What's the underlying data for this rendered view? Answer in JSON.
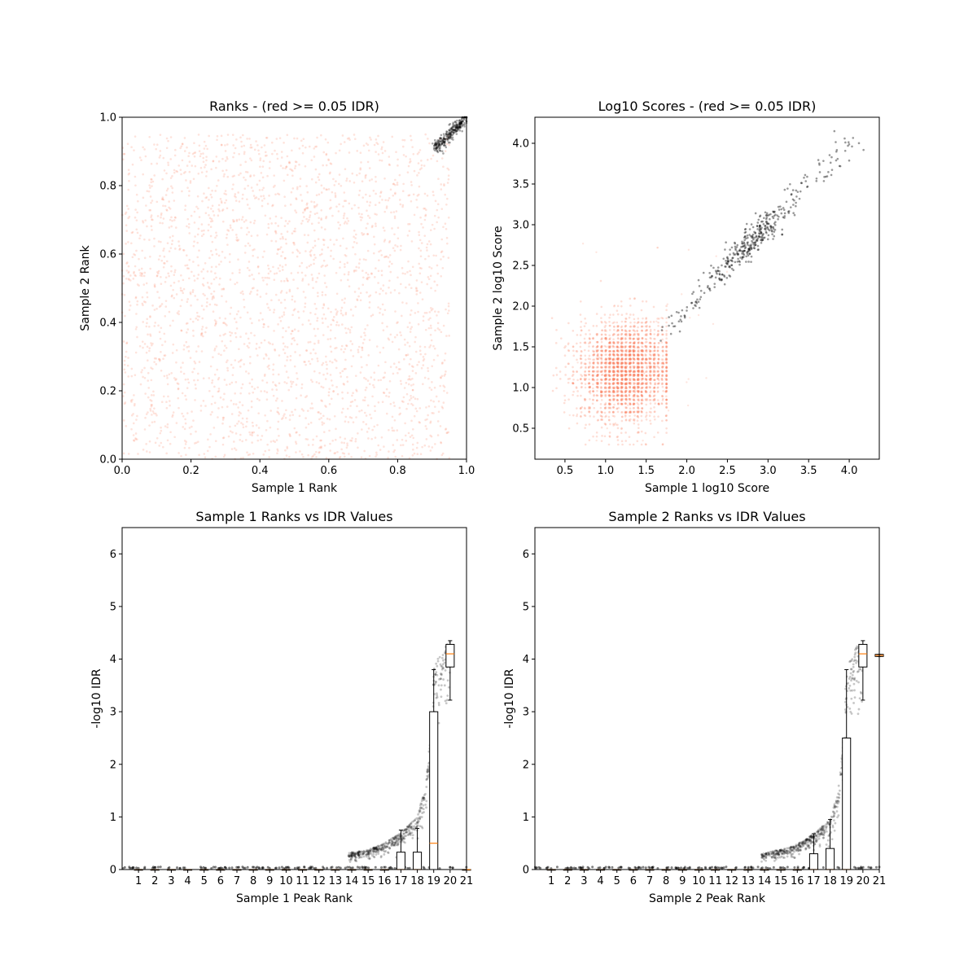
{
  "chart_data": [
    {
      "type": "scatter",
      "title": "Ranks - (red >= 0.05 IDR)",
      "xlabel": "Sample 1 Rank",
      "ylabel": "Sample 2 Rank",
      "xlim": [
        0.0,
        1.0
      ],
      "ylim": [
        0.0,
        1.0
      ],
      "xticks": [
        "0.0",
        "0.2",
        "0.4",
        "0.6",
        "0.8",
        "1.0"
      ],
      "yticks": [
        "0.0",
        "0.2",
        "0.4",
        "0.6",
        "0.8",
        "1.0"
      ],
      "grid": false,
      "colors": {
        "irreproducible": "#fa8060",
        "reproducible": "#000000"
      },
      "series": [
        {
          "point_count_estimate": 9500,
          "distribution": "uniform",
          "x_range": [
            0.0,
            0.95
          ],
          "y_range": [
            0.0,
            0.95
          ]
        },
        {
          "point_count_estimate": 450,
          "distribution": "diagonal band",
          "x_range": [
            0.9,
            1.0
          ],
          "y_range": [
            0.9,
            1.0
          ]
        }
      ]
    },
    {
      "type": "scatter",
      "title": "Log10 Scores - (red >= 0.05 IDR)",
      "xlabel": "Sample 1 log10 Score",
      "ylabel": "Sample 2 log10 Score",
      "xlim": [
        0.13,
        4.37
      ],
      "ylim": [
        0.12,
        4.32
      ],
      "xticks": [
        "0.5",
        "1.0",
        "1.5",
        "2.0",
        "2.5",
        "3.0",
        "3.5",
        "4.0"
      ],
      "yticks": [
        "0.5",
        "1.0",
        "1.5",
        "2.0",
        "2.5",
        "3.0",
        "3.5",
        "4.0"
      ],
      "grid": false,
      "colors": {
        "irreproducible": "#fa8060",
        "reproducible": "#000000"
      },
      "series": [
        {
          "point_count_estimate": 9500,
          "center": [
            1.25,
            1.2
          ],
          "x_range": [
            0.3,
            2.2
          ],
          "y_range": [
            0.3,
            2.4
          ]
        },
        {
          "point_count_estimate": 450,
          "distribution": "diagonal",
          "x_range": [
            1.7,
            4.15
          ],
          "y_range": [
            1.7,
            4.12
          ],
          "densest_at": [
            2.8,
            2.8
          ]
        }
      ]
    },
    {
      "type": "box",
      "title": "Sample 1 Ranks vs IDR Values",
      "xlabel": "Sample 1 Peak Rank",
      "ylabel": "-log10 IDR",
      "ylim": [
        0,
        6.5
      ],
      "yticks": [
        "0",
        "1",
        "2",
        "3",
        "4",
        "5",
        "6"
      ],
      "categories": [
        "1",
        "2",
        "3",
        "4",
        "5",
        "6",
        "7",
        "8",
        "9",
        "10",
        "11",
        "12",
        "13",
        "14",
        "15",
        "16",
        "17",
        "18",
        "19",
        "20",
        "21"
      ],
      "boxes": [
        {
          "q1": 0,
          "median": 0,
          "q3": 0,
          "whisker_low": 0,
          "whisker_high": 0
        },
        {
          "q1": 0,
          "median": 0,
          "q3": 0,
          "whisker_low": 0,
          "whisker_high": 0
        },
        {
          "q1": 0,
          "median": 0,
          "q3": 0,
          "whisker_low": 0,
          "whisker_high": 0
        },
        {
          "q1": 0,
          "median": 0,
          "q3": 0,
          "whisker_low": 0,
          "whisker_high": 0
        },
        {
          "q1": 0,
          "median": 0,
          "q3": 0,
          "whisker_low": 0,
          "whisker_high": 0
        },
        {
          "q1": 0,
          "median": 0,
          "q3": 0,
          "whisker_low": 0,
          "whisker_high": 0
        },
        {
          "q1": 0,
          "median": 0,
          "q3": 0,
          "whisker_low": 0,
          "whisker_high": 0
        },
        {
          "q1": 0,
          "median": 0,
          "q3": 0,
          "whisker_low": 0,
          "whisker_high": 0
        },
        {
          "q1": 0,
          "median": 0,
          "q3": 0,
          "whisker_low": 0,
          "whisker_high": 0
        },
        {
          "q1": 0,
          "median": 0,
          "q3": 0,
          "whisker_low": 0,
          "whisker_high": 0
        },
        {
          "q1": 0,
          "median": 0,
          "q3": 0,
          "whisker_low": 0,
          "whisker_high": 0
        },
        {
          "q1": 0,
          "median": 0,
          "q3": 0,
          "whisker_low": 0,
          "whisker_high": 0
        },
        {
          "q1": 0,
          "median": 0,
          "q3": 0,
          "whisker_low": 0,
          "whisker_high": 0
        },
        {
          "q1": 0,
          "median": 0,
          "q3": 0,
          "whisker_low": 0,
          "whisker_high": 0
        },
        {
          "q1": 0,
          "median": 0,
          "q3": 0,
          "whisker_low": 0,
          "whisker_high": 0
        },
        {
          "q1": 0,
          "median": 0,
          "q3": 0,
          "whisker_low": 0,
          "whisker_high": 0
        },
        {
          "q1": 0,
          "median": 0,
          "q3": 0.33,
          "whisker_low": 0,
          "whisker_high": 0.75
        },
        {
          "q1": 0,
          "median": 0,
          "q3": 0.33,
          "whisker_low": 0,
          "whisker_high": 0.78
        },
        {
          "q1": 0,
          "median": 0.5,
          "q3": 3.0,
          "whisker_low": 0,
          "whisker_high": 3.8
        },
        {
          "q1": 3.85,
          "median": 4.1,
          "q3": 4.28,
          "whisker_low": 3.22,
          "whisker_high": 4.35
        },
        {
          "q1": 0,
          "median": 0,
          "q3": 0,
          "whisker_low": 0,
          "whisker_high": 0
        }
      ],
      "scatter_trend": [
        [
          13.8,
          0.32
        ],
        [
          15,
          0.38
        ],
        [
          16,
          0.5
        ],
        [
          17,
          0.7
        ],
        [
          18,
          1.0
        ],
        [
          18.5,
          1.6
        ],
        [
          18.8,
          2.6
        ],
        [
          19,
          3.8
        ],
        [
          19.5,
          4.2
        ],
        [
          20,
          4.35
        ]
      ],
      "colors": {
        "median": "#ff7f0e",
        "points": "#000000"
      }
    },
    {
      "type": "box",
      "title": "Sample 2 Ranks vs IDR Values",
      "xlabel": "Sample 2 Peak Rank",
      "ylabel": "-log10 IDR",
      "ylim": [
        0,
        6.5
      ],
      "yticks": [
        "0",
        "1",
        "2",
        "3",
        "4",
        "5",
        "6"
      ],
      "categories": [
        "1",
        "2",
        "3",
        "4",
        "5",
        "6",
        "7",
        "8",
        "9",
        "10",
        "11",
        "12",
        "13",
        "14",
        "15",
        "16",
        "17",
        "18",
        "19",
        "20",
        "21"
      ],
      "boxes": [
        {
          "q1": 0,
          "median": 0,
          "q3": 0,
          "whisker_low": 0,
          "whisker_high": 0
        },
        {
          "q1": 0,
          "median": 0,
          "q3": 0,
          "whisker_low": 0,
          "whisker_high": 0
        },
        {
          "q1": 0,
          "median": 0,
          "q3": 0,
          "whisker_low": 0,
          "whisker_high": 0
        },
        {
          "q1": 0,
          "median": 0,
          "q3": 0,
          "whisker_low": 0,
          "whisker_high": 0
        },
        {
          "q1": 0,
          "median": 0,
          "q3": 0,
          "whisker_low": 0,
          "whisker_high": 0
        },
        {
          "q1": 0,
          "median": 0,
          "q3": 0,
          "whisker_low": 0,
          "whisker_high": 0
        },
        {
          "q1": 0,
          "median": 0,
          "q3": 0,
          "whisker_low": 0,
          "whisker_high": 0
        },
        {
          "q1": 0,
          "median": 0,
          "q3": 0,
          "whisker_low": 0,
          "whisker_high": 0
        },
        {
          "q1": 0,
          "median": 0,
          "q3": 0,
          "whisker_low": 0,
          "whisker_high": 0
        },
        {
          "q1": 0,
          "median": 0,
          "q3": 0,
          "whisker_low": 0,
          "whisker_high": 0
        },
        {
          "q1": 0,
          "median": 0,
          "q3": 0,
          "whisker_low": 0,
          "whisker_high": 0
        },
        {
          "q1": 0,
          "median": 0,
          "q3": 0,
          "whisker_low": 0,
          "whisker_high": 0
        },
        {
          "q1": 0,
          "median": 0,
          "q3": 0,
          "whisker_low": 0,
          "whisker_high": 0
        },
        {
          "q1": 0,
          "median": 0,
          "q3": 0,
          "whisker_low": 0,
          "whisker_high": 0
        },
        {
          "q1": 0,
          "median": 0,
          "q3": 0,
          "whisker_low": 0,
          "whisker_high": 0
        },
        {
          "q1": 0,
          "median": 0,
          "q3": 0,
          "whisker_low": 0,
          "whisker_high": 0
        },
        {
          "q1": 0,
          "median": 0,
          "q3": 0.3,
          "whisker_low": 0,
          "whisker_high": 0.68
        },
        {
          "q1": 0,
          "median": 0,
          "q3": 0.4,
          "whisker_low": 0,
          "whisker_high": 0.95
        },
        {
          "q1": 0,
          "median": 0,
          "q3": 2.5,
          "whisker_low": 0,
          "whisker_high": 3.8
        },
        {
          "q1": 3.85,
          "median": 4.1,
          "q3": 4.28,
          "whisker_low": 3.22,
          "whisker_high": 4.35
        },
        {
          "q1": 4.05,
          "median": 4.07,
          "q3": 4.09,
          "whisker_low": 4.05,
          "whisker_high": 4.09
        }
      ],
      "scatter_trend": [
        [
          13.8,
          0.3
        ],
        [
          15,
          0.38
        ],
        [
          16,
          0.48
        ],
        [
          17,
          0.68
        ],
        [
          18,
          0.95
        ],
        [
          18.5,
          1.5
        ],
        [
          18.8,
          2.5
        ],
        [
          19,
          3.8
        ],
        [
          19.5,
          4.2
        ],
        [
          20,
          4.35
        ]
      ],
      "colors": {
        "median": "#ff7f0e",
        "points": "#000000"
      }
    }
  ]
}
